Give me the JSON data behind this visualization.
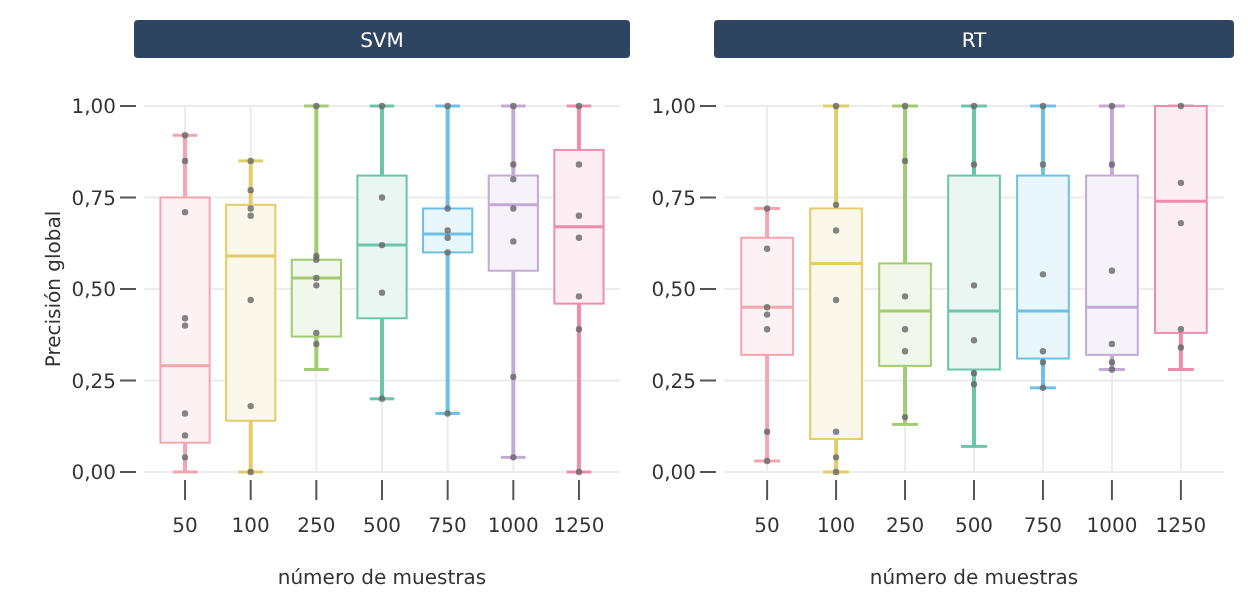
{
  "chart_data": [
    {
      "type": "box",
      "title": "SVM",
      "xlabel": "número de muestras",
      "ylabel": "Precisión global",
      "categories": [
        "50",
        "100",
        "250",
        "500",
        "750",
        "1000",
        "1250"
      ],
      "colors": [
        "#f4a6b0",
        "#e3cc6a",
        "#a3cc72",
        "#6cc4aa",
        "#6ec0e6",
        "#c4aad6",
        "#ef8cae"
      ],
      "boxes": [
        {
          "low": 0,
          "q1": 0.08,
          "median": 0.29,
          "q3": 0.75,
          "high": 0.92
        },
        {
          "low": 0,
          "q1": 0.14,
          "median": 0.59,
          "q3": 0.73,
          "high": 0.85
        },
        {
          "low": 0.28,
          "q1": 0.37,
          "median": 0.53,
          "q3": 0.58,
          "high": 1
        },
        {
          "low": 0.2,
          "q1": 0.42,
          "median": 0.62,
          "q3": 0.81,
          "high": 1
        },
        {
          "low": 0.16,
          "q1": 0.6,
          "median": 0.65,
          "q3": 0.72,
          "high": 1
        },
        {
          "low": 0.04,
          "q1": 0.55,
          "median": 0.73,
          "q3": 0.81,
          "high": 1
        },
        {
          "low": 0,
          "q1": 0.46,
          "median": 0.67,
          "q3": 0.88,
          "high": 1
        }
      ],
      "series": [
        {
          "type": "scatter",
          "color": "#666666",
          "values": [
            0.92,
            0.85,
            1,
            1,
            1,
            1,
            1
          ]
        },
        {
          "type": "scatter",
          "color": "#666666",
          "values": [
            0.85,
            0.77,
            0.59,
            0.75,
            0.72,
            0.84,
            0.84
          ]
        },
        {
          "type": "scatter",
          "color": "#666666",
          "values": [
            0.71,
            0.72,
            0.58,
            0.62,
            0.66,
            0.8,
            0.7
          ]
        },
        {
          "type": "scatter",
          "color": "#666666",
          "values": [
            0.42,
            0.7,
            0.53,
            0.49,
            0.64,
            0.72,
            0.64
          ]
        },
        {
          "type": "scatter",
          "color": "#666666",
          "values": [
            0.4,
            0.47,
            0.51,
            0.2,
            0.6,
            0.63,
            0.48
          ]
        },
        {
          "type": "scatter",
          "color": "#666666",
          "values": [
            0.16,
            0.18,
            0.38,
            null,
            0.16,
            0.26,
            0.39
          ]
        },
        {
          "type": "scatter",
          "color": "#666666",
          "values": [
            0.1,
            0,
            0.35,
            null,
            null,
            0.04,
            0
          ]
        },
        {
          "type": "scatter",
          "color": "#666666",
          "values": [
            0.04,
            null,
            null,
            null,
            null,
            null,
            null
          ]
        }
      ],
      "ylim": [
        0,
        1
      ],
      "yticks": [
        {
          "value": 0,
          "label": "0,00"
        },
        {
          "value": 0.25,
          "label": "0,25"
        },
        {
          "value": 0.5,
          "label": "0,50"
        },
        {
          "value": 0.75,
          "label": "0,75"
        },
        {
          "value": 1,
          "label": "1,00"
        }
      ],
      "grid": true,
      "marker": "circle"
    },
    {
      "type": "box",
      "title": "RT",
      "xlabel": "número de muestras",
      "categories": [
        "50",
        "100",
        "250",
        "500",
        "750",
        "1000",
        "1250"
      ],
      "colors": [
        "#f4a6b0",
        "#e3cc6a",
        "#a3cc72",
        "#6cc4aa",
        "#6ec0e6",
        "#c4aad6",
        "#ef8cae"
      ],
      "boxes": [
        {
          "low": 0.03,
          "q1": 0.32,
          "median": 0.45,
          "q3": 0.64,
          "high": 0.72
        },
        {
          "low": 0,
          "q1": 0.09,
          "median": 0.57,
          "q3": 0.72,
          "high": 1
        },
        {
          "low": 0.13,
          "q1": 0.29,
          "median": 0.44,
          "q3": 0.57,
          "high": 1
        },
        {
          "low": 0.07,
          "q1": 0.28,
          "median": 0.44,
          "q3": 0.81,
          "high": 1
        },
        {
          "low": 0.23,
          "q1": 0.31,
          "median": 0.44,
          "q3": 0.81,
          "high": 1
        },
        {
          "low": 0.28,
          "q1": 0.32,
          "median": 0.45,
          "q3": 0.81,
          "high": 1
        },
        {
          "low": 0.28,
          "q1": 0.38,
          "median": 0.74,
          "q3": 1,
          "high": 1
        }
      ],
      "series": [
        {
          "type": "scatter",
          "color": "#666666",
          "values": [
            0.72,
            1,
            1,
            1,
            1,
            1,
            1
          ]
        },
        {
          "type": "scatter",
          "color": "#666666",
          "values": [
            0.61,
            0.73,
            0.85,
            0.84,
            0.84,
            0.84,
            0.79
          ]
        },
        {
          "type": "scatter",
          "color": "#666666",
          "values": [
            0.45,
            0.66,
            0.48,
            0.51,
            0.54,
            0.55,
            0.68
          ]
        },
        {
          "type": "scatter",
          "color": "#666666",
          "values": [
            0.43,
            0.47,
            0.39,
            0.36,
            0.33,
            0.35,
            0.39
          ]
        },
        {
          "type": "scatter",
          "color": "#666666",
          "values": [
            0.39,
            0.11,
            0.33,
            0.27,
            0.3,
            0.3,
            0.34
          ]
        },
        {
          "type": "scatter",
          "color": "#666666",
          "values": [
            0.11,
            0.04,
            0.15,
            0.24,
            0.23,
            0.28,
            null
          ]
        },
        {
          "type": "scatter",
          "color": "#666666",
          "values": [
            0.03,
            0,
            null,
            null,
            null,
            null,
            null
          ]
        }
      ],
      "ylim": [
        0,
        1
      ],
      "yticks": [
        {
          "value": 0,
          "label": "0,00"
        },
        {
          "value": 0.25,
          "label": "0,25"
        },
        {
          "value": 0.5,
          "label": "0,50"
        },
        {
          "value": 0.75,
          "label": "0,75"
        },
        {
          "value": 1,
          "label": "1,00"
        }
      ],
      "grid": true,
      "marker": "circle"
    }
  ]
}
